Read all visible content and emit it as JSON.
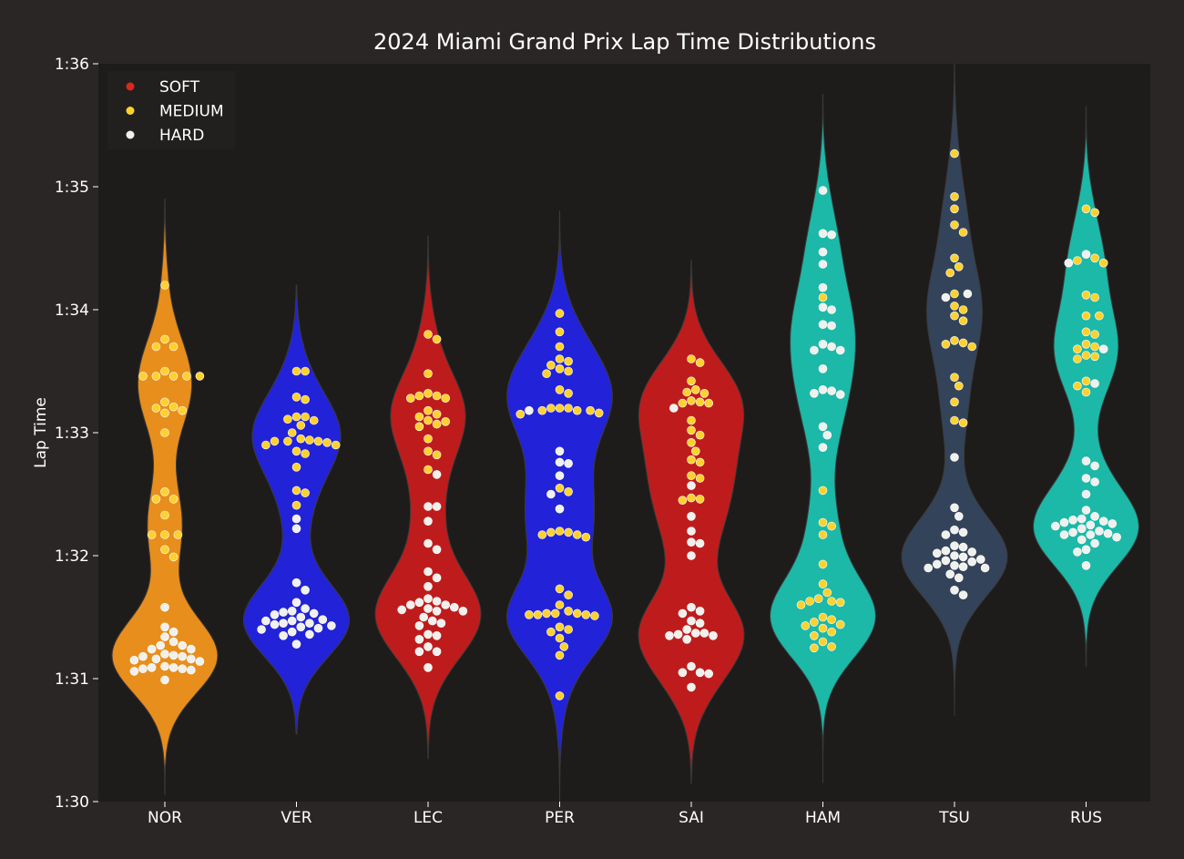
{
  "chart_data": {
    "type": "violin",
    "title": "2024 Miami Grand Prix Lap Time Distributions",
    "xlabel": "",
    "ylabel": "Lap Time",
    "y_unit": "seconds",
    "ylim": [
      90,
      96
    ],
    "y_ticks": [
      {
        "value": 90,
        "label": "1:30"
      },
      {
        "value": 91,
        "label": "1:31"
      },
      {
        "value": 92,
        "label": "1:32"
      },
      {
        "value": 93,
        "label": "1:33"
      },
      {
        "value": 94,
        "label": "1:34"
      },
      {
        "value": 95,
        "label": "1:35"
      },
      {
        "value": 96,
        "label": "1:36"
      }
    ],
    "categories": [
      "NOR",
      "VER",
      "LEC",
      "PER",
      "SAI",
      "HAM",
      "TSU",
      "RUS"
    ],
    "grid": false,
    "legend": {
      "placement": "top-left",
      "entries": [
        {
          "label": "SOFT",
          "color": "#da291c"
        },
        {
          "label": "MEDIUM",
          "color": "#ffd12e"
        },
        {
          "label": "HARD",
          "color": "#f0f0ec"
        }
      ]
    },
    "colors": {
      "background": "#292625",
      "plot_background": "#1e1c1b",
      "NOR": "#e88e1c",
      "VER": "#2222d8",
      "LEC": "#be1c1c",
      "PER": "#2222d8",
      "SAI": "#be1c1c",
      "HAM": "#1cb8a8",
      "TSU": "#33435a",
      "RUS": "#1cb8a8"
    },
    "series": [
      {
        "driver": "NOR",
        "y_extent": [
          90.05,
          94.9
        ],
        "points": [
          {
            "compound": "MEDIUM",
            "values": [
              94.2,
              93.76,
              93.7,
              93.7,
              93.5,
              93.46,
              93.46,
              93.46,
              93.46,
              93.46,
              93.25,
              93.21,
              93.2,
              93.18,
              93.16,
              93.0,
              92.52,
              92.46,
              92.46,
              92.33,
              92.17,
              92.17,
              92.17,
              92.05,
              91.99
            ]
          },
          {
            "compound": "HARD",
            "values": [
              91.58,
              91.42,
              91.38,
              91.34,
              91.3,
              91.27,
              91.27,
              91.24,
              91.24,
              91.2,
              91.19,
              91.18,
              91.18,
              91.16,
              91.16,
              91.15,
              91.14,
              91.1,
              91.09,
              91.09,
              91.08,
              91.08,
              91.07,
              91.06,
              90.99
            ]
          }
        ]
      },
      {
        "driver": "VER",
        "y_extent": [
          90.55,
          94.2
        ],
        "points": [
          {
            "compound": "MEDIUM",
            "values": [
              93.5,
              93.5,
              93.29,
              93.27,
              93.13,
              93.13,
              93.11,
              93.1,
              93.06,
              93.0,
              92.95,
              92.94,
              92.93,
              92.93,
              92.93,
              92.92,
              92.9,
              92.9,
              92.85,
              92.83,
              92.72,
              92.53,
              92.51,
              92.41
            ]
          },
          {
            "compound": "HARD",
            "values": [
              92.3,
              92.22,
              91.78,
              91.72,
              91.62,
              91.57,
              91.55,
              91.54,
              91.53,
              91.52,
              91.5,
              91.48,
              91.47,
              91.47,
              91.45,
              91.45,
              91.44,
              91.43,
              91.42,
              91.41,
              91.4,
              91.38,
              91.36,
              91.35,
              91.28
            ]
          }
        ]
      },
      {
        "driver": "LEC",
        "y_extent": [
          90.35,
          94.6
        ],
        "points": [
          {
            "compound": "MEDIUM",
            "values": [
              93.8,
              93.76,
              93.48,
              93.32,
              93.3,
              93.3,
              93.28,
              93.28,
              93.18,
              93.15,
              93.13,
              93.1,
              93.09,
              93.07,
              93.05,
              92.95,
              92.85,
              92.82,
              92.7
            ]
          },
          {
            "compound": "HARD",
            "values": [
              92.66,
              92.4,
              92.4,
              92.28,
              92.1,
              92.05,
              91.87,
              91.82,
              91.75,
              91.65,
              91.63,
              91.62,
              91.6,
              91.6,
              91.58,
              91.57,
              91.56,
              91.55,
              91.55,
              91.5,
              91.47,
              91.45,
              91.43,
              91.36,
              91.35,
              91.32,
              91.26,
              91.22,
              91.22,
              91.09
            ]
          }
        ]
      },
      {
        "driver": "PER",
        "y_extent": [
          90.0,
          94.8
        ],
        "points": [
          {
            "compound": "MEDIUM",
            "values": [
              93.97,
              93.82,
              93.7,
              93.6,
              93.58,
              93.55,
              93.52,
              93.5,
              93.48,
              93.35,
              93.32,
              93.2,
              93.2,
              93.2,
              93.18,
              93.18,
              93.18,
              93.16,
              93.15,
              92.55,
              92.52,
              92.2,
              92.19,
              92.19,
              92.17,
              92.17,
              92.15,
              91.73,
              91.68,
              91.6,
              91.55,
              91.53,
              91.53,
              91.53,
              91.52,
              91.52,
              91.52,
              91.51,
              91.42,
              91.4,
              91.38,
              91.33,
              91.26,
              91.19,
              90.86
            ]
          },
          {
            "compound": "HARD",
            "values": [
              93.18,
              92.85,
              92.76,
              92.75,
              92.65,
              92.5,
              92.38
            ]
          }
        ]
      },
      {
        "driver": "SAI",
        "y_extent": [
          90.15,
          94.4
        ],
        "points": [
          {
            "compound": "MEDIUM",
            "values": [
              93.6,
              93.57,
              93.42,
              93.35,
              93.33,
              93.32,
              93.26,
              93.25,
              93.24,
              93.24,
              93.1,
              93.02,
              92.98,
              92.92,
              92.85,
              92.78,
              92.76,
              92.65,
              92.63,
              92.47,
              92.46,
              92.45
            ]
          },
          {
            "compound": "HARD",
            "values": [
              93.2,
              92.57,
              92.32,
              92.2,
              92.11,
              92.1,
              92.0,
              91.58,
              91.55,
              91.53,
              91.47,
              91.45,
              91.4,
              91.37,
              91.37,
              91.36,
              91.35,
              91.35,
              91.32,
              91.1,
              91.05,
              91.05,
              91.04,
              90.93
            ]
          }
        ]
      },
      {
        "driver": "HAM",
        "y_extent": [
          90.15,
          95.75
        ],
        "points": [
          {
            "compound": "MEDIUM",
            "values": [
              94.1,
              92.53,
              92.27,
              92.24,
              92.17,
              91.93,
              91.77,
              91.7,
              91.65,
              91.63,
              91.63,
              91.62,
              91.6,
              91.5,
              91.48,
              91.46,
              91.44,
              91.43,
              91.41,
              91.38,
              91.35,
              91.3,
              91.26,
              91.25
            ]
          },
          {
            "compound": "HARD",
            "values": [
              94.97,
              94.62,
              94.61,
              94.47,
              94.37,
              94.18,
              94.02,
              94.0,
              93.88,
              93.87,
              93.72,
              93.7,
              93.67,
              93.67,
              93.52,
              93.35,
              93.34,
              93.32,
              93.31,
              93.05,
              92.98,
              92.88
            ]
          }
        ]
      },
      {
        "driver": "TSU",
        "y_extent": [
          90.7,
          96.0
        ],
        "points": [
          {
            "compound": "MEDIUM",
            "values": [
              95.27,
              94.92,
              94.82,
              94.69,
              94.63,
              94.42,
              94.35,
              94.3,
              94.13,
              94.03,
              94.0,
              93.95,
              93.91,
              93.75,
              93.73,
              93.72,
              93.7,
              93.45,
              93.38,
              93.25,
              93.1,
              93.08
            ]
          },
          {
            "compound": "HARD",
            "values": [
              94.13,
              94.1,
              92.8,
              92.39,
              92.32,
              92.21,
              92.19,
              92.17,
              92.08,
              92.07,
              92.04,
              92.03,
              92.02,
              92.0,
              91.99,
              91.97,
              91.96,
              91.95,
              91.93,
              91.92,
              91.91,
              91.9,
              91.9,
              91.85,
              91.82,
              91.72,
              91.68
            ]
          }
        ]
      },
      {
        "driver": "RUS",
        "y_extent": [
          91.1,
          95.65
        ],
        "points": [
          {
            "compound": "MEDIUM",
            "values": [
              94.82,
              94.79,
              94.42,
              94.4,
              94.38,
              94.12,
              94.1,
              93.95,
              93.95,
              93.82,
              93.8,
              93.72,
              93.7,
              93.68,
              93.63,
              93.62,
              93.6,
              93.42,
              93.38,
              93.33
            ]
          },
          {
            "compound": "HARD",
            "values": [
              94.45,
              94.38,
              93.68,
              93.4,
              92.77,
              92.73,
              92.63,
              92.6,
              92.5,
              92.37,
              92.32,
              92.3,
              92.29,
              92.28,
              92.27,
              92.26,
              92.25,
              92.24,
              92.22,
              92.2,
              92.19,
              92.18,
              92.17,
              92.17,
              92.15,
              92.13,
              92.1,
              92.05,
              92.03,
              91.92
            ]
          }
        ]
      }
    ]
  }
}
